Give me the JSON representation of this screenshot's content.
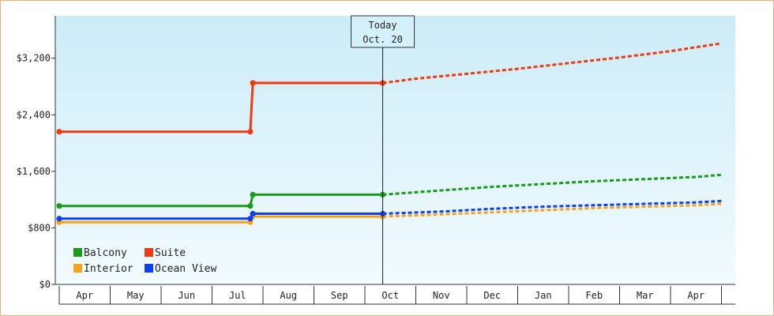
{
  "chart_data": {
    "type": "line",
    "title": "",
    "xlabel": "",
    "ylabel": "",
    "ylim": [
      0,
      3800
    ],
    "y_ticks": [
      0,
      800,
      1600,
      2400,
      3200
    ],
    "y_tick_labels": [
      "$0",
      "$800",
      "$1,600",
      "$2,400",
      "$3,200"
    ],
    "months": [
      "Apr",
      "May",
      "Jun",
      "Jul",
      "Aug",
      "Sep",
      "Oct",
      "Nov",
      "Dec",
      "Jan",
      "Feb",
      "Mar",
      "Apr"
    ],
    "today": {
      "line1": "Today",
      "line2": "Oct. 20",
      "month_pos": 6.35
    },
    "legend_position": "bottom-left",
    "series": [
      {
        "name": "Balcony",
        "color": "#1a9a1a",
        "actual": [
          [
            0,
            1110
          ],
          [
            3.75,
            1110
          ],
          [
            3.8,
            1270
          ],
          [
            6.35,
            1270
          ]
        ],
        "forecast": [
          [
            6.35,
            1270
          ],
          [
            7.5,
            1330
          ],
          [
            8.5,
            1380
          ],
          [
            9.5,
            1420
          ],
          [
            10.5,
            1460
          ],
          [
            11.5,
            1490
          ],
          [
            12.5,
            1520
          ],
          [
            13,
            1550
          ]
        ]
      },
      {
        "name": "Suite",
        "color": "#ee3a10",
        "actual": [
          [
            0,
            2160
          ],
          [
            3.75,
            2160
          ],
          [
            3.8,
            2850
          ],
          [
            6.35,
            2850
          ]
        ],
        "forecast": [
          [
            6.35,
            2850
          ],
          [
            7,
            2910
          ],
          [
            8,
            2980
          ],
          [
            9,
            3050
          ],
          [
            10,
            3130
          ],
          [
            11,
            3210
          ],
          [
            12,
            3300
          ],
          [
            13,
            3410
          ]
        ]
      },
      {
        "name": "Interior",
        "color": "#f4a41c",
        "actual": [
          [
            0,
            880
          ],
          [
            3.75,
            880
          ],
          [
            3.8,
            960
          ],
          [
            6.35,
            960
          ]
        ],
        "forecast": [
          [
            6.35,
            960
          ],
          [
            7.5,
            990
          ],
          [
            8.5,
            1020
          ],
          [
            9.5,
            1050
          ],
          [
            10.5,
            1080
          ],
          [
            11.5,
            1100
          ],
          [
            12.5,
            1120
          ],
          [
            13,
            1140
          ]
        ]
      },
      {
        "name": "Ocean View",
        "color": "#1040ee",
        "actual": [
          [
            0,
            930
          ],
          [
            3.75,
            930
          ],
          [
            3.8,
            1000
          ],
          [
            6.35,
            1000
          ]
        ],
        "forecast": [
          [
            6.35,
            1000
          ],
          [
            7.5,
            1030
          ],
          [
            8.5,
            1070
          ],
          [
            9.5,
            1100
          ],
          [
            10.5,
            1120
          ],
          [
            11.5,
            1140
          ],
          [
            12.5,
            1160
          ],
          [
            13,
            1180
          ]
        ]
      }
    ]
  }
}
